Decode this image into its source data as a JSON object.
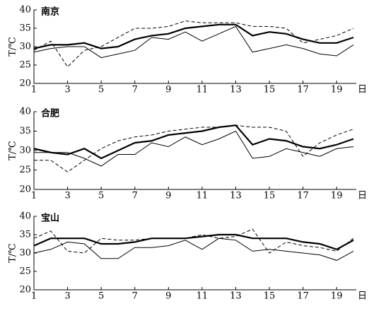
{
  "chart_data": [
    {
      "type": "line",
      "title": "南京",
      "ylabel": "T/℃",
      "xlabel": "日",
      "x": [
        1,
        2,
        3,
        4,
        5,
        6,
        7,
        8,
        9,
        10,
        11,
        12,
        13,
        14,
        15,
        16,
        17,
        18,
        19,
        20
      ],
      "xlim": [
        1,
        20
      ],
      "xticks": [
        1,
        3,
        5,
        7,
        9,
        11,
        13,
        15,
        17,
        19
      ],
      "ylim": [
        20,
        40
      ],
      "yticks": [
        20,
        25,
        30,
        35,
        40
      ],
      "series": [
        {
          "color": "#000",
          "width": 2.2,
          "dash": false,
          "values": [
            29.5,
            30.5,
            30.5,
            31,
            29.5,
            30,
            32,
            33,
            33.5,
            35,
            35.5,
            36,
            36,
            33,
            34,
            33.5,
            32,
            31,
            31,
            32.5
          ]
        },
        {
          "color": "#000",
          "width": 1,
          "dash": false,
          "values": [
            28.5,
            29.5,
            30,
            30,
            27,
            28,
            29,
            32.5,
            32,
            34,
            31.5,
            33.5,
            35.5,
            28.5,
            29.5,
            30.5,
            29.5,
            28,
            27.5,
            30.5
          ]
        },
        {
          "color": "#000",
          "width": 1,
          "dash": true,
          "values": [
            29,
            31.5,
            24.5,
            29,
            30,
            32.5,
            35,
            35,
            35.5,
            37,
            36.5,
            36.5,
            36.5,
            35.5,
            35.5,
            35,
            31,
            32,
            33,
            35
          ]
        }
      ]
    },
    {
      "type": "line",
      "title": "合肥",
      "ylabel": "T/℃",
      "xlabel": "日",
      "x": [
        1,
        2,
        3,
        4,
        5,
        6,
        7,
        8,
        9,
        10,
        11,
        12,
        13,
        14,
        15,
        16,
        17,
        18,
        19,
        20
      ],
      "xlim": [
        1,
        20
      ],
      "xticks": [
        1,
        3,
        5,
        7,
        9,
        11,
        13,
        15,
        17,
        19
      ],
      "ylim": [
        20,
        40
      ],
      "yticks": [
        20,
        25,
        30,
        35,
        40
      ],
      "series": [
        {
          "color": "#000",
          "width": 2.2,
          "dash": false,
          "values": [
            30.5,
            29.5,
            29,
            30.5,
            28,
            30,
            32,
            32.5,
            34,
            34.5,
            35,
            36,
            36.5,
            31.5,
            33,
            32.5,
            31,
            30.5,
            31.5,
            33
          ]
        },
        {
          "color": "#000",
          "width": 1,
          "dash": false,
          "values": [
            29.5,
            29.5,
            29.5,
            28,
            26,
            29,
            29,
            32,
            31,
            33.5,
            31.5,
            33,
            35,
            28,
            28.5,
            30.5,
            29.5,
            28.5,
            30.5,
            31
          ]
        },
        {
          "color": "#000",
          "width": 1,
          "dash": true,
          "values": [
            27.5,
            27.5,
            24.5,
            27.5,
            30.5,
            32.5,
            33.5,
            34,
            35,
            35.5,
            36,
            36,
            36.5,
            36,
            36,
            35,
            28.5,
            32,
            34,
            35.5
          ]
        }
      ]
    },
    {
      "type": "line",
      "title": "宝山",
      "ylabel": "T/℃",
      "xlabel": "日",
      "x": [
        1,
        2,
        3,
        4,
        5,
        6,
        7,
        8,
        9,
        10,
        11,
        12,
        13,
        14,
        15,
        16,
        17,
        18,
        19,
        20
      ],
      "xlim": [
        1,
        20
      ],
      "xticks": [
        1,
        3,
        5,
        7,
        9,
        11,
        13,
        15,
        17,
        19
      ],
      "ylim": [
        20,
        40
      ],
      "yticks": [
        20,
        25,
        30,
        35,
        40
      ],
      "series": [
        {
          "color": "#000",
          "width": 2.2,
          "dash": false,
          "values": [
            32,
            34,
            34,
            34,
            32.5,
            32.5,
            33,
            34,
            34,
            34,
            34.5,
            35,
            35,
            34,
            34,
            34,
            33,
            32.5,
            31,
            33.5
          ]
        },
        {
          "color": "#000",
          "width": 1,
          "dash": false,
          "values": [
            30,
            31,
            33,
            32.5,
            28.5,
            28.5,
            31.5,
            31.5,
            32,
            33.5,
            31,
            34,
            33.5,
            30.5,
            31,
            30.5,
            30,
            29.5,
            28,
            30.5
          ]
        },
        {
          "color": "#000",
          "width": 1,
          "dash": true,
          "values": [
            34,
            36,
            30.5,
            30,
            34,
            33.5,
            33.5,
            34,
            34,
            34,
            35,
            34,
            34.5,
            36.5,
            30,
            33,
            32,
            31.5,
            30.5,
            34
          ]
        }
      ]
    }
  ]
}
